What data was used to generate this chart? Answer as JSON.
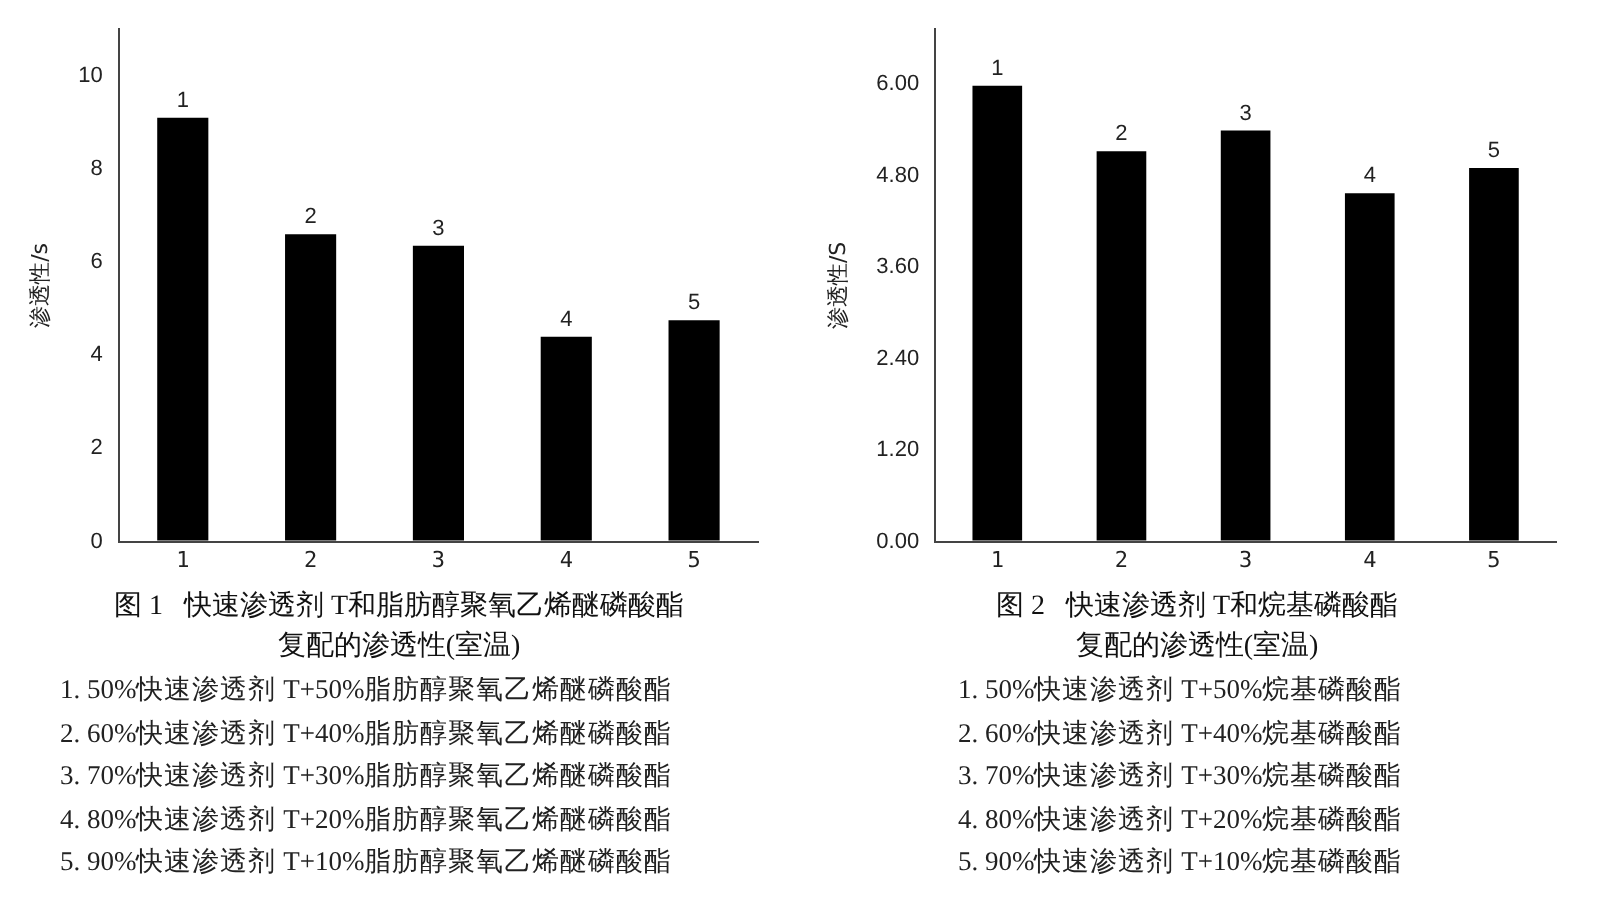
{
  "chart_data": [
    {
      "type": "bar",
      "title": "图 1  快速渗透剂 T和脂肪醇聚氧乙烯醚磷酸酯",
      "subtitle": "复配的渗透性(室温)",
      "ylabel": "渗透性/s",
      "categories": [
        "1",
        "2",
        "3",
        "4",
        "5"
      ],
      "values": [
        9.1,
        6.6,
        6.35,
        4.4,
        4.75
      ],
      "color": "#000000",
      "ylim": [
        0,
        11
      ],
      "yticks": [
        0,
        2,
        4,
        6,
        8,
        10
      ],
      "grid": false,
      "legend": false,
      "annotations": [
        {
          "text": "1",
          "x": "1",
          "y": 9.1
        },
        {
          "text": "2",
          "x": "2",
          "y": 6.6
        },
        {
          "text": "3",
          "x": "3",
          "y": 6.35
        },
        {
          "text": "4",
          "x": "4",
          "y": 4.4
        },
        {
          "text": "5",
          "x": "5",
          "y": 4.75
        },
        "1. 50%快速渗透剂 T+50%脂肪醇聚氧乙烯醚磷酸酯",
        "2. 60%快速渗透剂 T+40%脂肪醇聚氧乙烯醚磷酸酯",
        "3. 70%快速渗透剂 T+30%脂肪醇聚氧乙烯醚磷酸酯",
        "4. 80%快速渗透剂 T+20%脂肪醇聚氧乙烯醚磷酸酯",
        "5. 90%快速渗透剂 T+10%脂肪醇聚氧乙烯醚磷酸酯"
      ]
    },
    {
      "type": "bar",
      "title": "图 2  快速渗透剂 T和烷基磷酸酯",
      "subtitle": "复配的渗透性(室温)",
      "ylabel": "渗透性/S",
      "categories": [
        "1",
        "2",
        "3",
        "4",
        "5"
      ],
      "values": [
        5.98,
        5.12,
        5.39,
        4.57,
        4.9
      ],
      "color": "#000000",
      "ylim": [
        0,
        6.72
      ],
      "yticks": [
        {
          "value": 0,
          "label": "0.00"
        },
        {
          "value": 1.2,
          "label": "1.20"
        },
        {
          "value": 2.4,
          "label": "2.40"
        },
        {
          "value": 3.6,
          "label": "3.60"
        },
        {
          "value": 4.8,
          "label": "4.80"
        },
        {
          "value": 6,
          "label": "6.00"
        }
      ],
      "grid": false,
      "legend": false,
      "annotations": [
        {
          "text": "1",
          "x": "1",
          "y": 5.98
        },
        {
          "text": "2",
          "x": "2",
          "y": 5.12
        },
        {
          "text": "3",
          "x": "3",
          "y": 5.39
        },
        {
          "text": "4",
          "x": "4",
          "y": 4.57
        },
        {
          "text": "5",
          "x": "5",
          "y": 4.9
        },
        "1. 50%快速渗透剂 T+50%烷基磷酸酯",
        "2. 60%快速渗透剂 T+40%烷基磷酸酯",
        "3. 70%快速渗透剂 T+30%烷基磷酸酯",
        "4. 80%快速渗透剂 T+20%烷基磷酸酯",
        "5. 90%快速渗透剂 T+10%烷基磷酸酯"
      ]
    }
  ]
}
